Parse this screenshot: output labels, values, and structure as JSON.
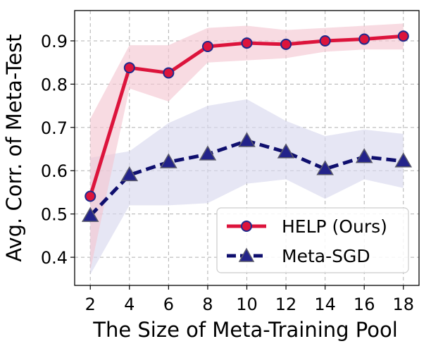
{
  "chart_data": {
    "type": "line",
    "title": "",
    "xlabel": "The Size of Meta-Training Pool",
    "ylabel": "Avg. Corr. of Meta-Test",
    "xlim": [
      1.2,
      18.8
    ],
    "ylim": [
      0.335,
      0.97
    ],
    "xticks": [
      2,
      4,
      6,
      8,
      10,
      12,
      14,
      16,
      18
    ],
    "yticks": [
      0.4,
      0.5,
      0.6,
      0.7,
      0.8,
      0.9
    ],
    "xtick_labels": [
      "2",
      "4",
      "6",
      "8",
      "10",
      "12",
      "14",
      "16",
      "18"
    ],
    "ytick_labels": [
      "0.4",
      "0.5",
      "0.6",
      "0.7",
      "0.8",
      "0.9"
    ],
    "grid": true,
    "legend_position": "lower-right",
    "x": [
      2,
      4,
      6,
      8,
      10,
      12,
      14,
      16,
      18
    ],
    "series": [
      {
        "name": "HELP (Ours)",
        "values": [
          0.541,
          0.838,
          0.826,
          0.887,
          0.895,
          0.892,
          0.9,
          0.904,
          0.911
        ],
        "lower": [
          0.37,
          0.79,
          0.76,
          0.85,
          0.855,
          0.86,
          0.875,
          0.88,
          0.88
        ],
        "upper": [
          0.72,
          0.89,
          0.89,
          0.93,
          0.935,
          0.925,
          0.93,
          0.935,
          0.94
        ],
        "color": "#dc143c",
        "band_color": "#f5c8d2",
        "marker_fill": "#dc143c",
        "marker_edge": "#1f2a8c",
        "marker": "circle",
        "style": "solid"
      },
      {
        "name": "Meta-SGD",
        "values": [
          0.496,
          0.59,
          0.62,
          0.638,
          0.669,
          0.643,
          0.604,
          0.632,
          0.622
        ],
        "lower": [
          0.36,
          0.52,
          0.52,
          0.525,
          0.57,
          0.58,
          0.535,
          0.58,
          0.56
        ],
        "upper": [
          0.63,
          0.645,
          0.71,
          0.75,
          0.765,
          0.715,
          0.68,
          0.695,
          0.685
        ],
        "color": "#0f0f6e",
        "band_color": "#d9d9ee",
        "marker_fill": "#23238a",
        "marker_edge": "#5a5a6a",
        "marker": "triangle",
        "style": "dashed"
      }
    ]
  }
}
